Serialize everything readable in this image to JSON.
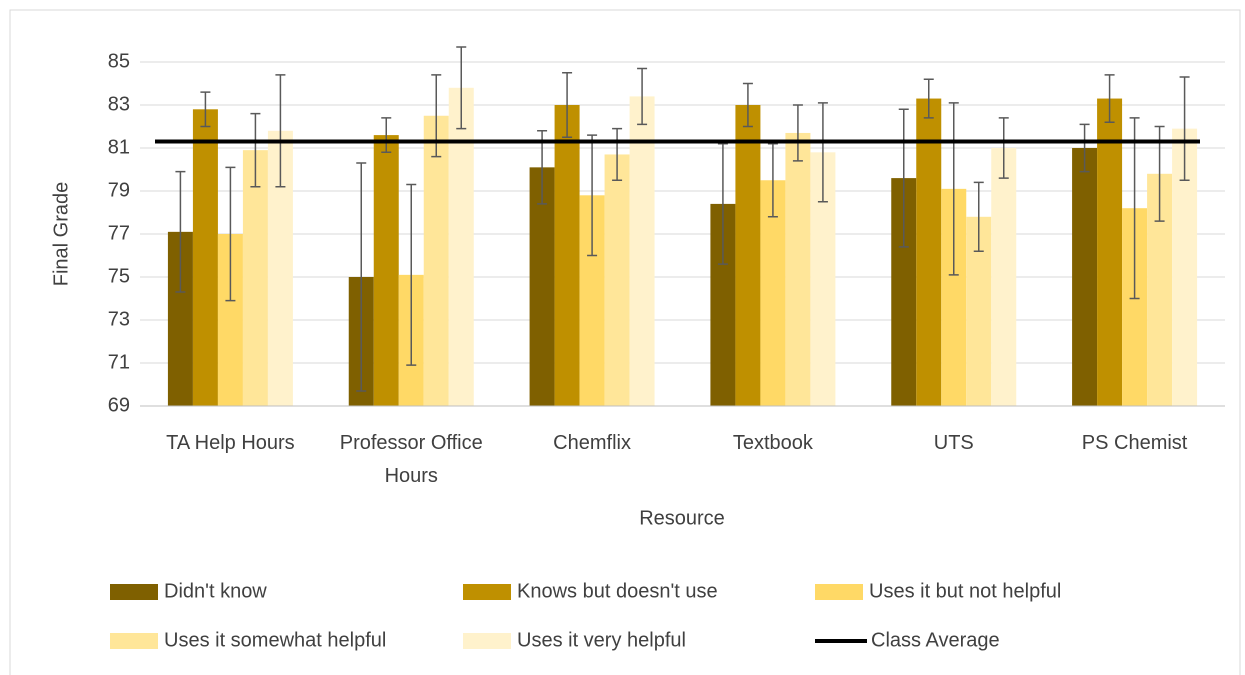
{
  "chart_data": {
    "type": "bar",
    "y_label": "Final Grade",
    "x_label": "Resource",
    "categories": [
      "TA Help Hours",
      "Professor Office Hours",
      "Chemflix",
      "Textbook",
      "UTS",
      "PS Chemist"
    ],
    "series": [
      {
        "name": "Didn't know",
        "color": "#7f6000",
        "values": [
          77.1,
          75.0,
          80.1,
          78.4,
          79.6,
          81.0
        ],
        "errors": [
          2.8,
          5.3,
          1.7,
          2.8,
          3.2,
          1.1
        ]
      },
      {
        "name": "Knows but doesn't use",
        "color": "#bf9000",
        "values": [
          82.8,
          81.6,
          83.0,
          83.0,
          83.3,
          83.3
        ],
        "errors": [
          0.8,
          0.8,
          1.5,
          1.0,
          0.9,
          1.1
        ]
      },
      {
        "name": "Uses it but not helpful",
        "color": "#ffd966",
        "values": [
          77.0,
          75.1,
          78.8,
          79.5,
          79.1,
          78.2
        ],
        "errors": [
          3.1,
          4.2,
          2.8,
          1.7,
          4.0,
          4.2
        ]
      },
      {
        "name": "Uses it somewhat helpful",
        "color": "#ffe699",
        "values": [
          80.9,
          82.5,
          80.7,
          81.7,
          77.8,
          79.8
        ],
        "errors": [
          1.7,
          1.9,
          1.2,
          1.3,
          1.6,
          2.2
        ]
      },
      {
        "name": "Uses it very helpful",
        "color": "#fff2cc",
        "values": [
          81.8,
          83.8,
          83.4,
          80.8,
          81.0,
          81.9
        ],
        "errors": [
          2.6,
          1.9,
          1.3,
          2.3,
          1.4,
          2.4
        ]
      }
    ],
    "class_average": {
      "name": "Class Average",
      "value": 81.3,
      "color": "#000000"
    },
    "ylim": [
      69,
      85
    ],
    "yticks": [
      69,
      71,
      73,
      75,
      77,
      79,
      81,
      83,
      85
    ],
    "grid": true
  }
}
